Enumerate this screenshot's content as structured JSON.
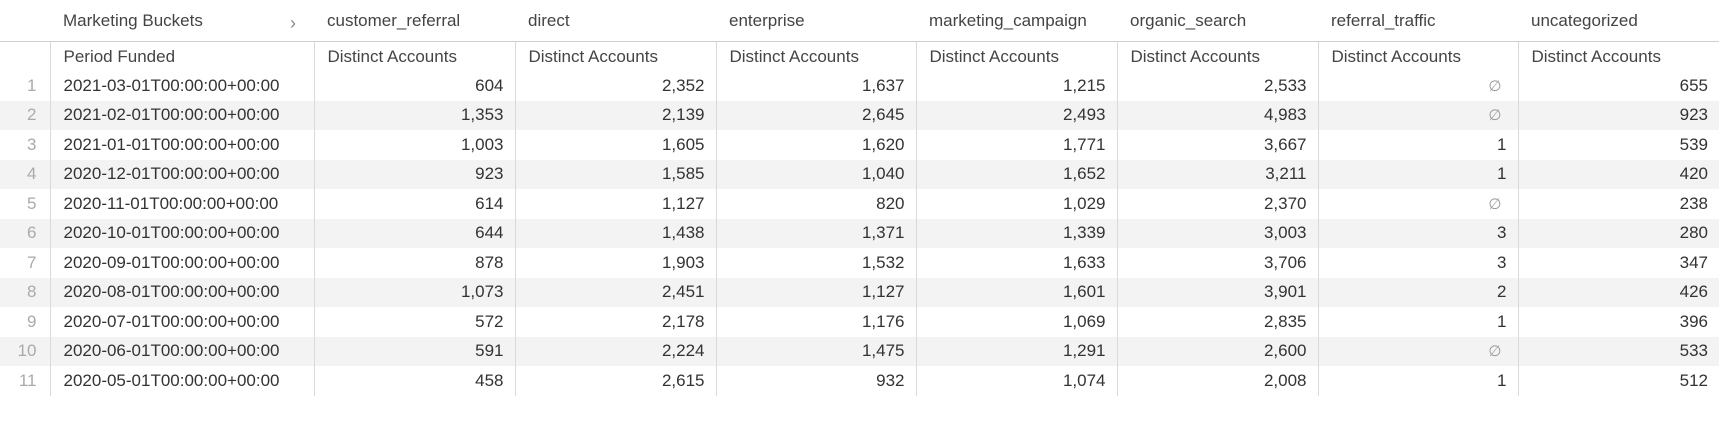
{
  "pivot_header": {
    "dimension_label": "Marketing Buckets",
    "expand_icon": "chevron-right-icon",
    "buckets": [
      "customer_referral",
      "direct",
      "enterprise",
      "marketing_campaign",
      "organic_search",
      "referral_traffic",
      "uncategorized"
    ]
  },
  "column_header": {
    "dimension": "Period Funded",
    "measure": "Distinct Accounts"
  },
  "null_symbol": "∅",
  "rows": [
    {
      "index": "1",
      "period": "2021-03-01T00:00:00+00:00",
      "values": [
        "604",
        "2,352",
        "1,637",
        "1,215",
        "2,533",
        "∅",
        "655"
      ]
    },
    {
      "index": "2",
      "period": "2021-02-01T00:00:00+00:00",
      "values": [
        "1,353",
        "2,139",
        "2,645",
        "2,493",
        "4,983",
        "∅",
        "923"
      ]
    },
    {
      "index": "3",
      "period": "2021-01-01T00:00:00+00:00",
      "values": [
        "1,003",
        "1,605",
        "1,620",
        "1,771",
        "3,667",
        "1",
        "539"
      ]
    },
    {
      "index": "4",
      "period": "2020-12-01T00:00:00+00:00",
      "values": [
        "923",
        "1,585",
        "1,040",
        "1,652",
        "3,211",
        "1",
        "420"
      ]
    },
    {
      "index": "5",
      "period": "2020-11-01T00:00:00+00:00",
      "values": [
        "614",
        "1,127",
        "820",
        "1,029",
        "2,370",
        "∅",
        "238"
      ]
    },
    {
      "index": "6",
      "period": "2020-10-01T00:00:00+00:00",
      "values": [
        "644",
        "1,438",
        "1,371",
        "1,339",
        "3,003",
        "3",
        "280"
      ]
    },
    {
      "index": "7",
      "period": "2020-09-01T00:00:00+00:00",
      "values": [
        "878",
        "1,903",
        "1,532",
        "1,633",
        "3,706",
        "3",
        "347"
      ]
    },
    {
      "index": "8",
      "period": "2020-08-01T00:00:00+00:00",
      "values": [
        "1,073",
        "2,451",
        "1,127",
        "1,601",
        "3,901",
        "2",
        "426"
      ]
    },
    {
      "index": "9",
      "period": "2020-07-01T00:00:00+00:00",
      "values": [
        "572",
        "2,178",
        "1,176",
        "1,069",
        "2,835",
        "1",
        "396"
      ]
    },
    {
      "index": "10",
      "period": "2020-06-01T00:00:00+00:00",
      "values": [
        "591",
        "2,224",
        "1,475",
        "1,291",
        "2,600",
        "∅",
        "533"
      ]
    },
    {
      "index": "11",
      "period": "2020-05-01T00:00:00+00:00",
      "values": [
        "458",
        "2,615",
        "932",
        "1,074",
        "2,008",
        "1",
        "512"
      ]
    }
  ]
}
